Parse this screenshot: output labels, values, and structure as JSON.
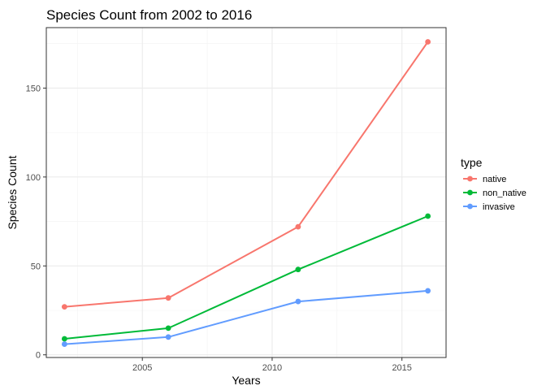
{
  "chart_data": {
    "type": "line",
    "title": "Species Count from 2002 to 2016",
    "xlabel": "Years",
    "ylabel": "Species Count",
    "x": [
      2002,
      2006,
      2011,
      2016
    ],
    "xlim": [
      2001.3,
      2016.7
    ],
    "ylim": [
      -1.5,
      184
    ],
    "xticks": [
      2005,
      2010,
      2015
    ],
    "yticks": [
      0,
      50,
      100,
      150
    ],
    "xminor": [
      2002.5,
      2007.5,
      2012.5
    ],
    "yminor": [
      25,
      75,
      125,
      175
    ],
    "grid": true,
    "legend": {
      "title": "type",
      "placement": "right"
    },
    "series": [
      {
        "name": "native",
        "color": "#F8766D",
        "values": [
          27,
          32,
          72,
          176
        ]
      },
      {
        "name": "non_native",
        "color": "#00BA38",
        "values": [
          9,
          15,
          48,
          78
        ]
      },
      {
        "name": "invasive",
        "color": "#619CFF",
        "values": [
          6,
          10,
          30,
          36
        ]
      }
    ]
  }
}
